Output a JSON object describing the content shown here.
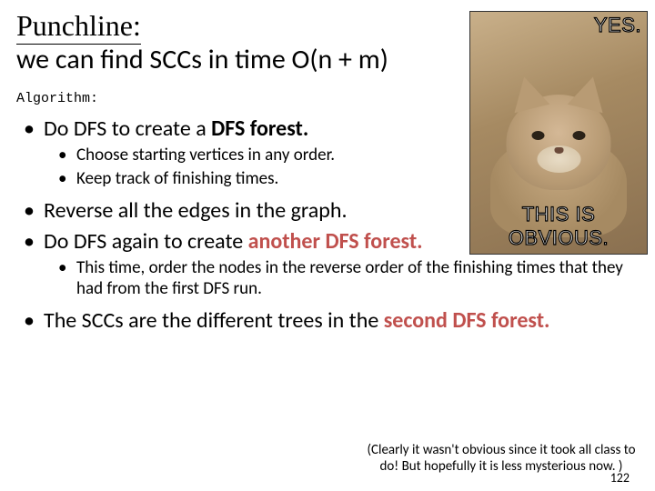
{
  "title": {
    "line1": "Punchline:",
    "line2": "we can find SCCs in time O(n + m)"
  },
  "algo_label": "Algorithm:",
  "bullets": {
    "b1_pre": "Do DFS to create a ",
    "b1_bold": "DFS forest.",
    "b1_sub1": "Choose starting vertices in any order.",
    "b1_sub2": "Keep track of finishing times.",
    "b2": "Reverse all the edges in the graph.",
    "b3_pre": "Do DFS again to create ",
    "b3_accent": "another DFS forest.",
    "b3_sub1": "This time, order the nodes in the reverse order of the finishing times that they had from the first DFS run.",
    "b4_pre": "The SCCs are the different trees in the ",
    "b4_accent": "second DFS forest."
  },
  "meme": {
    "top": "YES.",
    "bottom": "THIS IS OBVIOUS."
  },
  "footnote": "(Clearly it wasn't obvious since it took all class to do!  But hopefully it is less mysterious now. )",
  "page_number": "122",
  "colors": {
    "accent": "#c0504d",
    "text": "#000000",
    "background": "#ffffff"
  }
}
